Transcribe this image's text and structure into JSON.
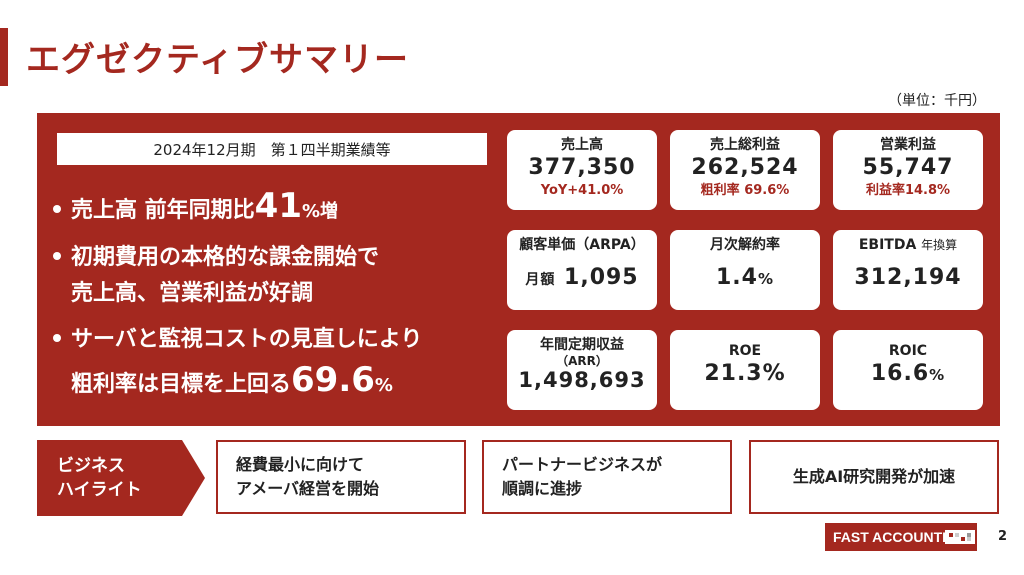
{
  "title": "エグゼクティブサマリー",
  "unit": "（単位：千円）",
  "period": "2024年12月期　第１四半期業績等",
  "bullets": {
    "b1_pre": "売上高 前年同期比",
    "b1_num": "41",
    "b1_suf": "%増",
    "b2_line1": "初期費用の本格的な課金開始で",
    "b2_line2": "売上高、営業利益が好調",
    "b3_line1": "サーバと監視コストの見直しにより",
    "b3_pre": "粗利率は目標を上回る",
    "b3_num": "69.6",
    "b3_suf": "%"
  },
  "cards": {
    "sales": {
      "label": "売上高",
      "value": "377,350",
      "sub": "YoY+41.0%"
    },
    "gross": {
      "label": "売上総利益",
      "value": "262,524",
      "sub": "粗利率 69.6%"
    },
    "op": {
      "label": "営業利益",
      "value": "55,747",
      "sub": "利益率14.8%"
    },
    "arpa": {
      "label": "顧客単価（ARPA）",
      "prefix": "月額",
      "value": "1,095"
    },
    "churn": {
      "label": "月次解約率",
      "value": "1.4",
      "unit": "%"
    },
    "ebitda": {
      "label": "EBITDA",
      "label_small": "年換算",
      "value": "312,194"
    },
    "arr": {
      "label": "年間定期収益",
      "label2": "（ARR）",
      "value": "1,498,693"
    },
    "roe": {
      "label": "ROE",
      "value": "21.3%"
    },
    "roic": {
      "label": "ROIC",
      "value": "16.6",
      "unit": "%"
    }
  },
  "highlights": {
    "tag_line1": "ビジネス",
    "tag_line2": "ハイライト",
    "h1_line1": "経費最小に向けて",
    "h1_line2": "アメーバ経営を開始",
    "h2_line1": "パートナービジネスが",
    "h2_line2": "順調に進捗",
    "h3": "生成AI研究開発が加速"
  },
  "logo": "FAST ACCOUNTING",
  "page_number": "2",
  "colors": {
    "accent": "#a4281f",
    "background": "#ffffff"
  }
}
